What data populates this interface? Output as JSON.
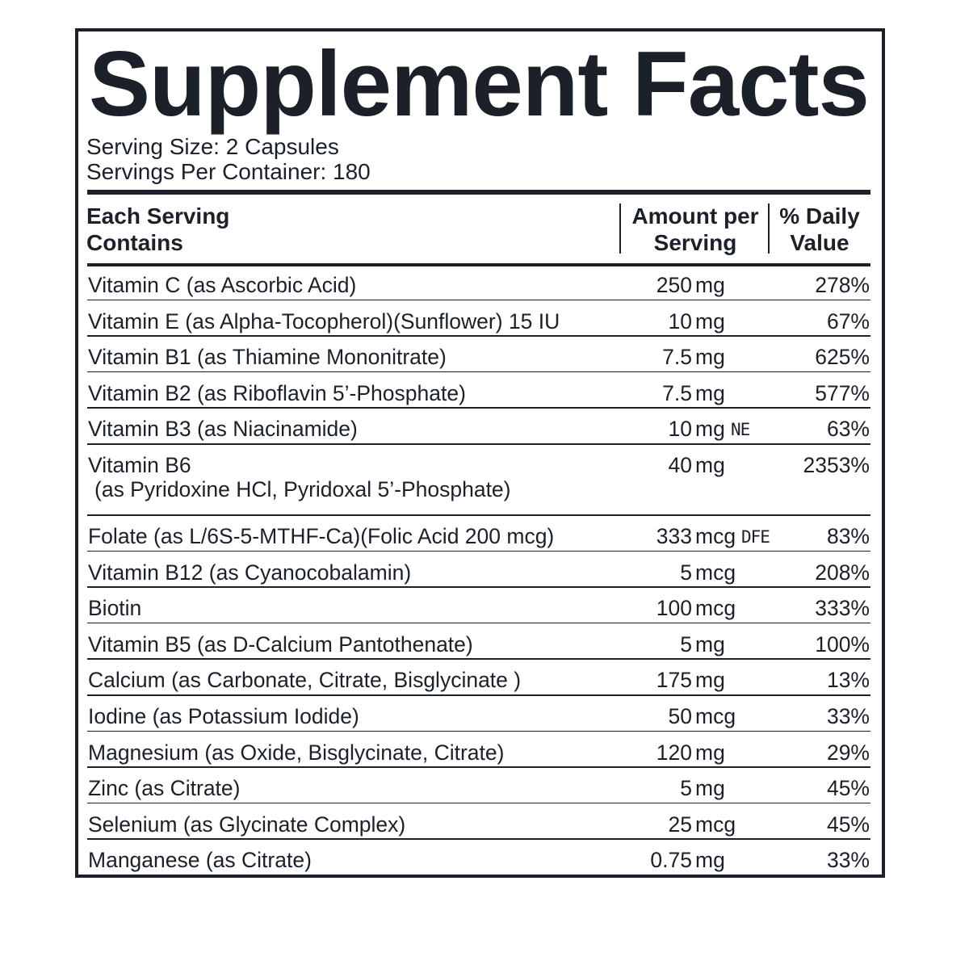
{
  "title": "Supplement Facts",
  "serving_size": "Serving Size: 2 Capsules",
  "servings_per_container": "Servings Per Container: 180",
  "columns": [
    [
      "Each Serving",
      "Contains"
    ],
    [
      "Amount per",
      "Serving"
    ],
    [
      "% Daily",
      "Value"
    ]
  ],
  "rows": [
    {
      "name": "Vitamin C (as Ascorbic Acid)",
      "number": "250",
      "unit": "mg",
      "dv": "278%"
    },
    {
      "name": "Vitamin E (as Alpha-Tocopherol)(Sunflower) 15 IU",
      "number": "10",
      "unit": "mg",
      "dv": "67%"
    },
    {
      "name": "Vitamin B1 (as Thiamine Mononitrate)",
      "number": "7.5",
      "unit": "mg",
      "dv": "625%"
    },
    {
      "name": "Vitamin B2 (as Riboflavin 5’-Phosphate)",
      "number": "7.5",
      "unit": "mg",
      "dv": "577%"
    },
    {
      "name": "Vitamin B3 (as Niacinamide)",
      "number": "10",
      "unit": "mg",
      "note": "NE",
      "dv": "63%"
    },
    {
      "name": "Vitamin B6",
      "detail": "(as Pyridoxine HCl, Pyridoxal 5’-Phosphate)",
      "number": "40",
      "unit": "mg",
      "dv": "2353%"
    },
    {
      "name": "Folate (as L/6S-5-MTHF-Ca)(Folic Acid 200 mcg)",
      "number": "333",
      "unit": "mcg",
      "note": "DFE",
      "dv": "83%"
    },
    {
      "name": "Vitamin B12 (as Cyanocobalamin)",
      "number": "5",
      "unit": "mcg",
      "dv": "208%"
    },
    {
      "name": "Biotin",
      "number": "100",
      "unit": "mcg",
      "dv": "333%"
    },
    {
      "name": "Vitamin B5 (as D-Calcium Pantothenate)",
      "number": "5",
      "unit": "mg",
      "dv": "100%"
    },
    {
      "name": "Calcium (as Carbonate, Citrate, Bisglycinate )",
      "number": "175",
      "unit": "mg",
      "dv": "13%"
    },
    {
      "name": "Iodine (as Potassium Iodide)",
      "number": "50",
      "unit": "mcg",
      "dv": "33%"
    },
    {
      "name": "Magnesium (as Oxide, Bisglycinate, Citrate)",
      "number": "120",
      "unit": "mg",
      "dv": "29%"
    },
    {
      "name": "Zinc (as Citrate)",
      "number": "5",
      "unit": "mg",
      "dv": "45%"
    },
    {
      "name": "Selenium (as Glycinate Complex)",
      "number": "25",
      "unit": "mcg",
      "dv": "45%"
    },
    {
      "name": "Manganese (as Citrate)",
      "number": "0.75",
      "unit": "mg",
      "dv": "33%"
    }
  ]
}
